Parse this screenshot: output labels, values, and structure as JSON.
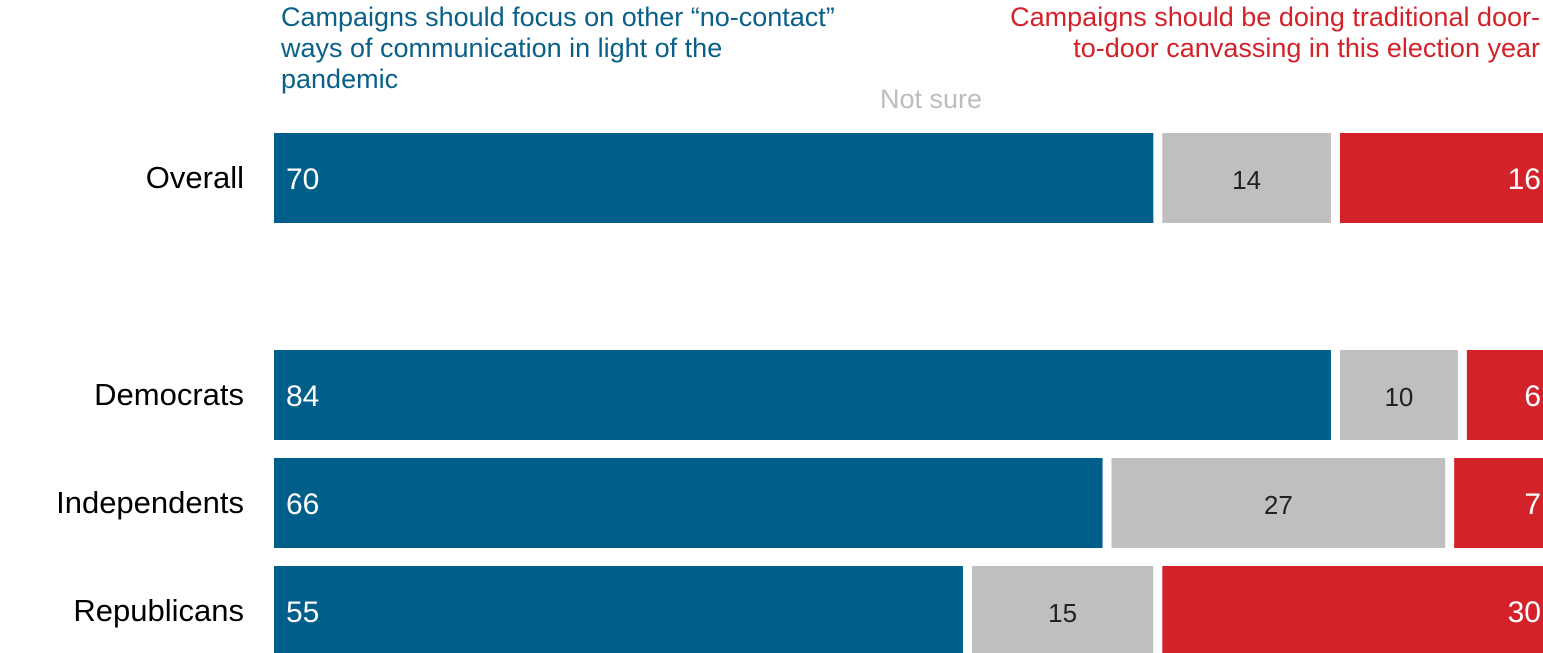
{
  "chart_data": {
    "type": "bar",
    "orientation": "horizontal",
    "stacked": true,
    "categories": [
      "Overall",
      "Democrats",
      "Independents",
      "Republicans"
    ],
    "series": [
      {
        "name": "Campaigns should focus on other “no-contact” ways of communication in light of the pandemic",
        "values": [
          70,
          84,
          66,
          55
        ],
        "color": "#005e8a",
        "label_color": "#ffffff"
      },
      {
        "name": "Not sure",
        "values": [
          14,
          10,
          27,
          15
        ],
        "color": "#bfbfbf",
        "label_color": "#222222"
      },
      {
        "name": "Campaigns should be doing traditional door-to-door canvassing in this election year",
        "values": [
          16,
          6,
          7,
          30
        ],
        "color": "#d3222a",
        "label_color": "#ffffff"
      }
    ],
    "xlim": [
      0,
      100
    ],
    "grid": false,
    "legend": "top, as column headers above bars"
  },
  "headers": {
    "left": "Campaigns should focus on other “no-contact” ways of communication in light of the pandemic",
    "middle": "Not sure",
    "right": "Campaigns should be doing traditional door-to-door canvassing in this election year"
  },
  "colors": {
    "blue": "#005e8a",
    "gray": "#bfbfbf",
    "red": "#d3222a",
    "header_left": "#0a6089",
    "header_middle": "#bdbdbd",
    "header_right": "#d3222a"
  }
}
